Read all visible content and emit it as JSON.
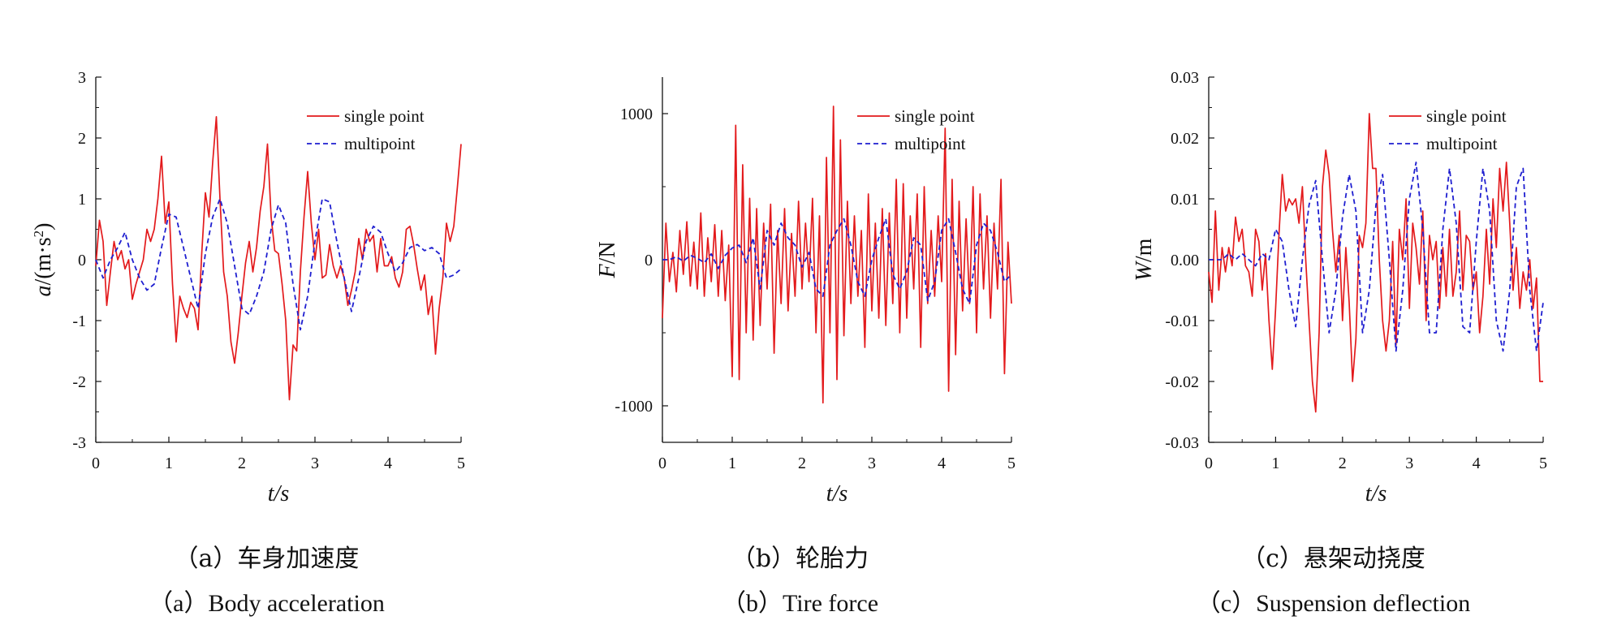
{
  "chart_data": [
    {
      "type": "line",
      "xlabel": "t/s",
      "ylabel": "a/(m·s²)",
      "ylabel_parts": {
        "var": "a",
        "unit": "/(m·s",
        "sup": "2",
        "close": ")"
      },
      "xlim": [
        0,
        5
      ],
      "ylim": [
        -3,
        3
      ],
      "xticks": [
        "0",
        "1",
        "2",
        "3",
        "4",
        "5"
      ],
      "yticks": [
        "-3",
        "-2",
        "-1",
        "0",
        "1",
        "2",
        "3"
      ],
      "xtick_values": [
        0,
        1,
        2,
        3,
        4,
        5
      ],
      "ytick_values": [
        -3,
        -2,
        -1,
        0,
        1,
        2,
        3
      ],
      "legend_position": "top-right",
      "caption_cn": "（a）车身加速度",
      "caption_en": "（a）Body acceleration",
      "series": [
        {
          "name": "single point",
          "color": "#e31a1c",
          "style": "solid",
          "x": [
            0,
            0.05,
            0.1,
            0.15,
            0.2,
            0.25,
            0.3,
            0.35,
            0.4,
            0.45,
            0.5,
            0.55,
            0.6,
            0.65,
            0.7,
            0.75,
            0.8,
            0.85,
            0.9,
            0.95,
            1.0,
            1.05,
            1.1,
            1.15,
            1.2,
            1.25,
            1.3,
            1.35,
            1.4,
            1.45,
            1.5,
            1.55,
            1.6,
            1.65,
            1.7,
            1.75,
            1.8,
            1.85,
            1.9,
            1.95,
            2.0,
            2.05,
            2.1,
            2.15,
            2.2,
            2.25,
            2.3,
            2.35,
            2.4,
            2.45,
            2.5,
            2.55,
            2.6,
            2.65,
            2.7,
            2.75,
            2.8,
            2.85,
            2.9,
            2.95,
            3.0,
            3.05,
            3.1,
            3.15,
            3.2,
            3.25,
            3.3,
            3.35,
            3.4,
            3.45,
            3.5,
            3.55,
            3.6,
            3.65,
            3.7,
            3.75,
            3.8,
            3.85,
            3.9,
            3.95,
            4.0,
            4.05,
            4.1,
            4.15,
            4.2,
            4.25,
            4.3,
            4.35,
            4.4,
            4.45,
            4.5,
            4.55,
            4.6,
            4.65,
            4.7,
            4.75,
            4.8,
            4.85,
            4.9,
            4.95,
            5.0
          ],
          "y": [
            -0.1,
            0.65,
            0.3,
            -0.75,
            -0.2,
            0.3,
            0.0,
            0.15,
            -0.15,
            0.0,
            -0.65,
            -0.4,
            -0.2,
            0.0,
            0.5,
            0.3,
            0.5,
            1.0,
            1.7,
            0.6,
            0.95,
            -0.4,
            -1.35,
            -0.6,
            -0.8,
            -0.95,
            -0.7,
            -0.8,
            -1.15,
            0.1,
            1.1,
            0.7,
            1.6,
            2.35,
            1.0,
            -0.2,
            -0.6,
            -1.35,
            -1.7,
            -1.2,
            -0.6,
            -0.05,
            0.3,
            -0.2,
            0.2,
            0.8,
            1.2,
            1.9,
            0.7,
            0.15,
            0.1,
            -0.4,
            -1.0,
            -2.3,
            -1.4,
            -1.5,
            -0.2,
            0.7,
            1.45,
            0.6,
            0.0,
            0.5,
            -0.3,
            -0.25,
            0.25,
            -0.1,
            -0.3,
            -0.1,
            -0.3,
            -0.75,
            -0.5,
            -0.2,
            0.35,
            0.0,
            0.5,
            0.3,
            0.4,
            -0.2,
            0.35,
            -0.1,
            -0.1,
            0.05,
            -0.3,
            -0.45,
            -0.2,
            0.5,
            0.55,
            0.25,
            -0.15,
            -0.5,
            -0.25,
            -0.9,
            -0.6,
            -1.55,
            -0.8,
            -0.3,
            0.6,
            0.3,
            0.55,
            1.2,
            1.9
          ]
        },
        {
          "name": "multipoint",
          "color": "#1f1fd0",
          "style": "dashed",
          "x": [
            0,
            0.1,
            0.2,
            0.3,
            0.4,
            0.5,
            0.6,
            0.7,
            0.8,
            0.9,
            1.0,
            1.1,
            1.2,
            1.3,
            1.4,
            1.5,
            1.6,
            1.7,
            1.8,
            1.9,
            2.0,
            2.1,
            2.2,
            2.3,
            2.4,
            2.5,
            2.6,
            2.7,
            2.8,
            2.9,
            3.0,
            3.1,
            3.2,
            3.3,
            3.4,
            3.5,
            3.6,
            3.7,
            3.8,
            3.9,
            4.0,
            4.1,
            4.2,
            4.3,
            4.4,
            4.5,
            4.6,
            4.7,
            4.8,
            4.9,
            5.0
          ],
          "y": [
            0.0,
            -0.3,
            0.0,
            0.2,
            0.45,
            0.0,
            -0.3,
            -0.5,
            -0.4,
            0.2,
            0.75,
            0.7,
            0.2,
            -0.3,
            -0.8,
            0.1,
            0.7,
            1.0,
            0.6,
            -0.1,
            -0.8,
            -0.9,
            -0.6,
            -0.2,
            0.5,
            0.9,
            0.6,
            -0.4,
            -1.15,
            -0.6,
            0.3,
            1.0,
            0.95,
            0.3,
            -0.3,
            -0.85,
            -0.3,
            0.3,
            0.55,
            0.45,
            0.1,
            -0.2,
            -0.05,
            0.2,
            0.25,
            0.15,
            0.2,
            0.1,
            -0.3,
            -0.25,
            -0.15
          ]
        }
      ]
    },
    {
      "type": "line",
      "xlabel": "t/s",
      "ylabel": "F/N",
      "ylabel_parts": {
        "var": "F",
        "unit": "/N"
      },
      "xlim": [
        0,
        5
      ],
      "ylim": [
        -1250,
        1250
      ],
      "xticks": [
        "0",
        "1",
        "2",
        "3",
        "4",
        "5"
      ],
      "yticks": [
        "-1000",
        "0",
        "1000"
      ],
      "xtick_values": [
        0,
        1,
        2,
        3,
        4,
        5
      ],
      "ytick_values": [
        -1000,
        0,
        1000
      ],
      "legend_position": "top-right",
      "caption_cn": "（b）轮胎力",
      "caption_en": "（b）Tire force",
      "series": [
        {
          "name": "single point",
          "color": "#e31a1c",
          "style": "solid",
          "x": [
            0,
            0.05,
            0.1,
            0.15,
            0.2,
            0.25,
            0.3,
            0.35,
            0.4,
            0.45,
            0.5,
            0.55,
            0.6,
            0.65,
            0.7,
            0.75,
            0.8,
            0.85,
            0.9,
            0.95,
            1.0,
            1.05,
            1.1,
            1.15,
            1.2,
            1.25,
            1.3,
            1.35,
            1.4,
            1.45,
            1.5,
            1.55,
            1.6,
            1.65,
            1.7,
            1.75,
            1.8,
            1.85,
            1.9,
            1.95,
            2.0,
            2.05,
            2.1,
            2.15,
            2.2,
            2.25,
            2.3,
            2.35,
            2.4,
            2.45,
            2.5,
            2.55,
            2.6,
            2.65,
            2.7,
            2.75,
            2.8,
            2.85,
            2.9,
            2.95,
            3.0,
            3.05,
            3.1,
            3.15,
            3.2,
            3.25,
            3.3,
            3.35,
            3.4,
            3.45,
            3.5,
            3.55,
            3.6,
            3.65,
            3.7,
            3.75,
            3.8,
            3.85,
            3.9,
            3.95,
            4.0,
            4.05,
            4.1,
            4.15,
            4.2,
            4.25,
            4.3,
            4.35,
            4.4,
            4.45,
            4.5,
            4.55,
            4.6,
            4.65,
            4.7,
            4.75,
            4.8,
            4.85,
            4.9,
            4.95,
            5.0
          ],
          "y": [
            -400,
            250,
            -150,
            50,
            -220,
            200,
            -100,
            260,
            -180,
            120,
            -200,
            320,
            -250,
            150,
            -150,
            240,
            -250,
            200,
            -280,
            100,
            -800,
            920,
            -820,
            650,
            -500,
            420,
            -550,
            350,
            -450,
            250,
            -200,
            380,
            -640,
            200,
            -300,
            350,
            -350,
            180,
            -250,
            400,
            -200,
            250,
            -150,
            420,
            -500,
            300,
            -980,
            700,
            -500,
            1050,
            -820,
            820,
            -520,
            400,
            -300,
            300,
            -250,
            200,
            -600,
            450,
            -350,
            250,
            -400,
            350,
            -450,
            320,
            -300,
            550,
            -500,
            520,
            -400,
            300,
            -200,
            450,
            -600,
            500,
            -300,
            200,
            -250,
            300,
            -150,
            900,
            -900,
            550,
            -650,
            400,
            -350,
            280,
            -300,
            500,
            -500,
            450,
            -200,
            300,
            -400,
            250,
            -200,
            550,
            -780,
            120,
            -300
          ]
        },
        {
          "name": "multipoint",
          "color": "#1f1fd0",
          "style": "dashed",
          "x": [
            0,
            0.1,
            0.2,
            0.3,
            0.4,
            0.5,
            0.6,
            0.7,
            0.8,
            0.9,
            1.0,
            1.1,
            1.2,
            1.3,
            1.4,
            1.5,
            1.6,
            1.7,
            1.8,
            1.9,
            2.0,
            2.1,
            2.2,
            2.3,
            2.4,
            2.5,
            2.6,
            2.7,
            2.8,
            2.9,
            3.0,
            3.1,
            3.2,
            3.3,
            3.4,
            3.5,
            3.6,
            3.7,
            3.8,
            3.9,
            4.0,
            4.1,
            4.2,
            4.3,
            4.4,
            4.5,
            4.6,
            4.7,
            4.8,
            4.9,
            5.0
          ],
          "y": [
            0,
            0,
            20,
            -10,
            30,
            10,
            -20,
            40,
            -60,
            30,
            80,
            100,
            -20,
            150,
            -200,
            200,
            100,
            250,
            150,
            100,
            -50,
            50,
            -200,
            -250,
            100,
            200,
            280,
            100,
            -150,
            -250,
            0,
            150,
            280,
            -100,
            -200,
            -80,
            150,
            100,
            -280,
            -150,
            200,
            280,
            50,
            -200,
            -300,
            100,
            250,
            200,
            50,
            -150,
            -100
          ]
        }
      ]
    },
    {
      "type": "line",
      "xlabel": "t/s",
      "ylabel": "W/m",
      "ylabel_parts": {
        "var": "W",
        "unit": "/m"
      },
      "xlim": [
        0,
        5
      ],
      "ylim": [
        -0.03,
        0.03
      ],
      "xticks": [
        "0",
        "1",
        "2",
        "3",
        "4",
        "5"
      ],
      "yticks": [
        "-0.03",
        "-0.02",
        "-0.01",
        "0.00",
        "0.01",
        "0.02",
        "0.03"
      ],
      "xtick_values": [
        0,
        1,
        2,
        3,
        4,
        5
      ],
      "ytick_values": [
        -0.03,
        -0.02,
        -0.01,
        0.0,
        0.01,
        0.02,
        0.03
      ],
      "legend_position": "top-right",
      "caption_cn": "（c）悬架动挠度",
      "caption_en": "（c）Suspension deflection",
      "series": [
        {
          "name": "single point",
          "color": "#e31a1c",
          "style": "solid",
          "x": [
            0,
            0.05,
            0.1,
            0.15,
            0.2,
            0.25,
            0.3,
            0.35,
            0.4,
            0.45,
            0.5,
            0.55,
            0.6,
            0.65,
            0.7,
            0.75,
            0.8,
            0.85,
            0.9,
            0.95,
            1.0,
            1.05,
            1.1,
            1.15,
            1.2,
            1.25,
            1.3,
            1.35,
            1.4,
            1.45,
            1.5,
            1.55,
            1.6,
            1.65,
            1.7,
            1.75,
            1.8,
            1.85,
            1.9,
            1.95,
            2.0,
            2.05,
            2.1,
            2.15,
            2.2,
            2.25,
            2.3,
            2.35,
            2.4,
            2.45,
            2.5,
            2.55,
            2.6,
            2.65,
            2.7,
            2.75,
            2.8,
            2.85,
            2.9,
            2.95,
            3.0,
            3.05,
            3.1,
            3.15,
            3.2,
            3.25,
            3.3,
            3.35,
            3.4,
            3.45,
            3.5,
            3.55,
            3.6,
            3.65,
            3.7,
            3.75,
            3.8,
            3.85,
            3.9,
            3.95,
            4.0,
            4.05,
            4.1,
            4.15,
            4.2,
            4.25,
            4.3,
            4.35,
            4.4,
            4.45,
            4.5,
            4.55,
            4.6,
            4.65,
            4.7,
            4.75,
            4.8,
            4.85,
            4.9,
            4.95,
            5.0
          ],
          "y": [
            -0.002,
            -0.007,
            0.008,
            -0.005,
            0.002,
            -0.002,
            0.002,
            -0.001,
            0.007,
            0.003,
            0.005,
            -0.001,
            -0.002,
            -0.006,
            0.005,
            0.003,
            -0.005,
            0.001,
            -0.01,
            -0.018,
            -0.008,
            0.004,
            0.014,
            0.008,
            0.01,
            0.009,
            0.01,
            0.006,
            0.012,
            0.0,
            -0.01,
            -0.02,
            -0.025,
            -0.012,
            0.012,
            0.018,
            0.014,
            0.005,
            -0.002,
            0.004,
            -0.01,
            0.002,
            -0.007,
            -0.02,
            -0.013,
            0.004,
            0.002,
            0.006,
            0.024,
            0.015,
            0.015,
            0.0,
            -0.01,
            -0.015,
            -0.01,
            0.003,
            -0.014,
            0.005,
            0.0,
            0.01,
            -0.008,
            0.006,
            0.002,
            -0.004,
            0.008,
            -0.01,
            0.004,
            0.0,
            0.003,
            -0.008,
            0.002,
            -0.006,
            0.005,
            -0.006,
            -0.002,
            0.008,
            -0.005,
            0.004,
            0.003,
            -0.005,
            -0.002,
            -0.012,
            -0.006,
            0.005,
            -0.004,
            0.01,
            0.002,
            0.015,
            0.008,
            0.016,
            0.006,
            -0.005,
            0.002,
            -0.008,
            -0.002,
            -0.005,
            0.0,
            -0.008,
            -0.003,
            -0.02,
            -0.02
          ]
        },
        {
          "name": "multipoint",
          "color": "#1f1fd0",
          "style": "dashed",
          "x": [
            0,
            0.1,
            0.2,
            0.3,
            0.4,
            0.5,
            0.6,
            0.7,
            0.8,
            0.9,
            1.0,
            1.1,
            1.2,
            1.3,
            1.4,
            1.5,
            1.6,
            1.7,
            1.8,
            1.9,
            2.0,
            2.1,
            2.2,
            2.3,
            2.4,
            2.5,
            2.6,
            2.7,
            2.8,
            2.9,
            3.0,
            3.1,
            3.2,
            3.3,
            3.4,
            3.5,
            3.6,
            3.7,
            3.8,
            3.9,
            4.0,
            4.1,
            4.2,
            4.3,
            4.4,
            4.5,
            4.6,
            4.7,
            4.8,
            4.9,
            5.0
          ],
          "y": [
            0.0,
            0.0,
            0.0,
            0.001,
            0.0,
            0.001,
            0.0,
            -0.001,
            0.001,
            0.0,
            0.005,
            0.003,
            -0.005,
            -0.011,
            0.0,
            0.009,
            0.013,
            0.0,
            -0.012,
            -0.005,
            0.007,
            0.014,
            0.008,
            -0.012,
            -0.005,
            0.009,
            0.014,
            0.0,
            -0.015,
            -0.005,
            0.01,
            0.016,
            0.005,
            -0.012,
            -0.012,
            0.005,
            0.015,
            0.006,
            -0.011,
            -0.012,
            0.003,
            0.015,
            0.008,
            -0.01,
            -0.015,
            -0.005,
            0.012,
            0.015,
            -0.005,
            -0.015,
            -0.007
          ]
        }
      ]
    }
  ]
}
